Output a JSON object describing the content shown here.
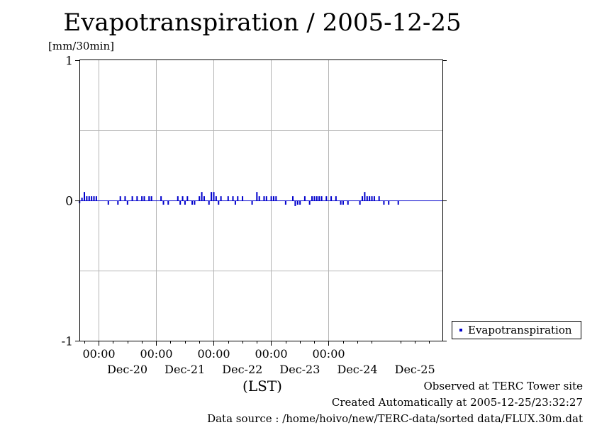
{
  "chart_data": {
    "type": "bar",
    "title": "Evapotranspiration / 2005-12-25",
    "ylabel": "[mm/30min]",
    "xlabel": "(LST)",
    "ylim": [
      -1,
      1
    ],
    "yticks": [
      -1,
      0,
      1
    ],
    "xlim_days": [
      "Dec-19 16:00",
      "Dec-25 23:30"
    ],
    "time_ticks": [
      "00:00",
      "00:00",
      "00:00",
      "00:00",
      "00:00"
    ],
    "date_labels": [
      "Dec-20",
      "Dec-21",
      "Dec-22",
      "Dec-23",
      "Dec-24",
      "Dec-25"
    ],
    "grid": true,
    "legend": "right",
    "series": [
      {
        "name": "Evapotranspiration",
        "color": "#0000cc",
        "points": [
          [
            "Dec-19 16:00",
            -0.02
          ],
          [
            "Dec-19 17:00",
            0.02
          ],
          [
            "Dec-19 18:00",
            0.06
          ],
          [
            "Dec-19 19:00",
            0.03
          ],
          [
            "Dec-19 20:00",
            0.03
          ],
          [
            "Dec-19 21:00",
            0.03
          ],
          [
            "Dec-19 22:00",
            0.03
          ],
          [
            "Dec-19 23:00",
            0.03
          ],
          [
            "Dec-20 04:00",
            -0.03
          ],
          [
            "Dec-20 08:00",
            -0.03
          ],
          [
            "Dec-20 09:00",
            0.03
          ],
          [
            "Dec-20 11:00",
            0.03
          ],
          [
            "Dec-20 12:00",
            -0.03
          ],
          [
            "Dec-20 14:00",
            0.03
          ],
          [
            "Dec-20 16:00",
            0.03
          ],
          [
            "Dec-20 18:00",
            0.03
          ],
          [
            "Dec-20 19:00",
            0.03
          ],
          [
            "Dec-20 21:00",
            0.03
          ],
          [
            "Dec-20 22:00",
            0.03
          ],
          [
            "Dec-21 02:00",
            0.03
          ],
          [
            "Dec-21 03:00",
            -0.03
          ],
          [
            "Dec-21 05:00",
            -0.03
          ],
          [
            "Dec-21 09:00",
            0.03
          ],
          [
            "Dec-21 10:00",
            -0.03
          ],
          [
            "Dec-21 11:00",
            0.03
          ],
          [
            "Dec-21 12:00",
            -0.03
          ],
          [
            "Dec-21 13:00",
            0.03
          ],
          [
            "Dec-21 15:00",
            -0.03
          ],
          [
            "Dec-21 16:00",
            -0.03
          ],
          [
            "Dec-21 18:00",
            0.03
          ],
          [
            "Dec-21 19:00",
            0.06
          ],
          [
            "Dec-21 20:00",
            0.03
          ],
          [
            "Dec-21 22:00",
            -0.03
          ],
          [
            "Dec-21 23:00",
            0.06
          ],
          [
            "Dec-22 00:00",
            0.06
          ],
          [
            "Dec-22 01:00",
            0.03
          ],
          [
            "Dec-22 02:00",
            -0.03
          ],
          [
            "Dec-22 03:00",
            0.03
          ],
          [
            "Dec-22 06:00",
            0.03
          ],
          [
            "Dec-22 08:00",
            0.03
          ],
          [
            "Dec-22 09:00",
            -0.03
          ],
          [
            "Dec-22 10:00",
            0.03
          ],
          [
            "Dec-22 12:00",
            0.03
          ],
          [
            "Dec-22 16:00",
            -0.03
          ],
          [
            "Dec-22 18:00",
            0.06
          ],
          [
            "Dec-22 19:00",
            0.03
          ],
          [
            "Dec-22 21:00",
            0.03
          ],
          [
            "Dec-22 22:00",
            0.03
          ],
          [
            "Dec-23 00:00",
            0.03
          ],
          [
            "Dec-23 01:00",
            0.03
          ],
          [
            "Dec-23 02:00",
            0.03
          ],
          [
            "Dec-23 06:00",
            -0.03
          ],
          [
            "Dec-23 09:00",
            0.03
          ],
          [
            "Dec-23 10:00",
            -0.04
          ],
          [
            "Dec-23 11:00",
            -0.03
          ],
          [
            "Dec-23 12:00",
            -0.03
          ],
          [
            "Dec-23 14:00",
            0.03
          ],
          [
            "Dec-23 16:00",
            -0.03
          ],
          [
            "Dec-23 17:00",
            0.03
          ],
          [
            "Dec-23 18:00",
            0.03
          ],
          [
            "Dec-23 19:00",
            0.03
          ],
          [
            "Dec-23 20:00",
            0.03
          ],
          [
            "Dec-23 21:00",
            0.03
          ],
          [
            "Dec-23 23:00",
            0.03
          ],
          [
            "Dec-24 01:00",
            0.03
          ],
          [
            "Dec-24 03:00",
            0.03
          ],
          [
            "Dec-24 05:00",
            -0.03
          ],
          [
            "Dec-24 06:00",
            -0.03
          ],
          [
            "Dec-24 08:00",
            -0.03
          ],
          [
            "Dec-24 13:00",
            -0.03
          ],
          [
            "Dec-24 14:00",
            0.03
          ],
          [
            "Dec-24 15:00",
            0.06
          ],
          [
            "Dec-24 16:00",
            0.03
          ],
          [
            "Dec-24 17:00",
            0.03
          ],
          [
            "Dec-24 18:00",
            0.03
          ],
          [
            "Dec-24 19:00",
            0.03
          ],
          [
            "Dec-24 21:00",
            0.03
          ],
          [
            "Dec-24 23:00",
            -0.03
          ],
          [
            "Dec-25 01:00",
            -0.03
          ],
          [
            "Dec-25 05:00",
            -0.03
          ]
        ]
      }
    ]
  },
  "footer": {
    "line1": "Observed at TERC Tower site",
    "line2": "Created Automatically at 2005-12-25/23:32:27",
    "line3": "Data source : /home/hoivo/new/TERC-data/sorted  data/FLUX.30m.dat"
  }
}
